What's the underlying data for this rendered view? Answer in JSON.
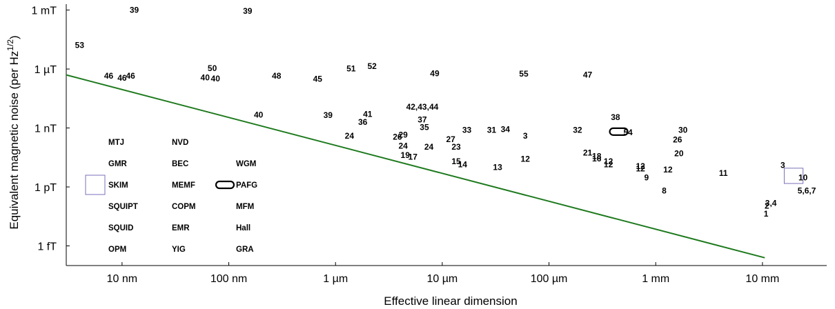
{
  "chart_data": {
    "type": "scatter",
    "xlabel": "Effective linear dimension",
    "ylabel": "Equivalent magnetic noise (per Hz",
    "ylabel_exp": "1/2",
    "ylabel_close": ")",
    "x_scale": "log",
    "y_scale": "log",
    "xlim": [
      3e-09,
      0.04
    ],
    "ylim": [
      1e-16,
      0.002
    ],
    "x_ticks": [
      {
        "value": 1e-08,
        "label": "10 nm"
      },
      {
        "value": 1e-07,
        "label": "100 nm"
      },
      {
        "value": 1e-06,
        "label": "1 µm"
      },
      {
        "value": 1e-05,
        "label": "10 µm"
      },
      {
        "value": 0.0001,
        "label": "100 µm"
      },
      {
        "value": 0.001,
        "label": "1 mm"
      },
      {
        "value": 0.01,
        "label": "10 mm"
      }
    ],
    "y_ticks": [
      {
        "value": 1e-15,
        "label": "1 fT"
      },
      {
        "value": 1e-12,
        "label": "1 pT"
      },
      {
        "value": 1e-09,
        "label": "1 nT"
      },
      {
        "value": 1e-06,
        "label": "1 µT"
      },
      {
        "value": 0.001,
        "label": "1 mT"
      }
    ],
    "trend_line": {
      "color": "#1e7a1e",
      "x": [
        3e-09,
        0.0105
      ],
      "y": [
        5e-07,
        2.5e-16
      ]
    },
    "points": [
      {
        "label": "39",
        "x": 1.3e-08,
        "y": 0.001
      },
      {
        "label": "39",
        "x": 1.5e-07,
        "y": 0.0009
      },
      {
        "label": "53",
        "x": 4e-09,
        "y": 1.6e-05
      },
      {
        "label": "46",
        "x": 7.5e-09,
        "y": 4.5e-07
      },
      {
        "label": "46",
        "x": 1e-08,
        "y": 3.5e-07
      },
      {
        "label": "46",
        "x": 1.2e-08,
        "y": 4.5e-07
      },
      {
        "label": "50",
        "x": 7e-08,
        "y": 1.1e-06
      },
      {
        "label": "40",
        "x": 6e-08,
        "y": 3.6e-07
      },
      {
        "label": "40",
        "x": 7.5e-08,
        "y": 3.3e-07
      },
      {
        "label": "48",
        "x": 2.8e-07,
        "y": 4.5e-07
      },
      {
        "label": "45",
        "x": 6.8e-07,
        "y": 3.1e-07
      },
      {
        "label": "51",
        "x": 1.4e-06,
        "y": 1.05e-06
      },
      {
        "label": "52",
        "x": 2.2e-06,
        "y": 1.4e-06
      },
      {
        "label": "49",
        "x": 8.5e-06,
        "y": 6e-07
      },
      {
        "label": "55",
        "x": 5.8e-05,
        "y": 5.7e-07
      },
      {
        "label": "47",
        "x": 0.00023,
        "y": 5e-07
      },
      {
        "label": "40",
        "x": 1.9e-07,
        "y": 4.7e-09
      },
      {
        "label": "39",
        "x": 8.5e-07,
        "y": 4.5e-09
      },
      {
        "label": "41",
        "x": 2e-06,
        "y": 5e-09
      },
      {
        "label": "42,43,44",
        "x": 6.5e-06,
        "y": 1.2e-08
      },
      {
        "label": "36",
        "x": 1.8e-06,
        "y": 2e-09
      },
      {
        "label": "37",
        "x": 6.5e-06,
        "y": 2.6e-09
      },
      {
        "label": "35",
        "x": 6.8e-06,
        "y": 1.1e-09
      },
      {
        "label": "38",
        "x": 0.00042,
        "y": 3.5e-09
      },
      {
        "label": "33",
        "x": 1.7e-05,
        "y": 8e-10
      },
      {
        "label": "31",
        "x": 2.9e-05,
        "y": 8e-10
      },
      {
        "label": "34",
        "x": 3.9e-05,
        "y": 8.5e-10
      },
      {
        "label": "32",
        "x": 0.000185,
        "y": 8e-10
      },
      {
        "label": "30",
        "x": 0.0018,
        "y": 8e-10
      },
      {
        "label": "54",
        "x": 0.00055,
        "y": 6e-10
      },
      {
        "label": "3",
        "x": 6e-05,
        "y": 4e-10
      },
      {
        "label": "24",
        "x": 1.35e-06,
        "y": 4e-10
      },
      {
        "label": "26",
        "x": 3.8e-06,
        "y": 3.5e-10
      },
      {
        "label": "29",
        "x": 4.3e-06,
        "y": 4.5e-10
      },
      {
        "label": "27",
        "x": 1.2e-05,
        "y": 2.6e-10
      },
      {
        "label": "26",
        "x": 0.0016,
        "y": 2.5e-10
      },
      {
        "label": "24",
        "x": 4.3e-06,
        "y": 1.25e-10
      },
      {
        "label": "24",
        "x": 7.5e-06,
        "y": 1.1e-10
      },
      {
        "label": "23",
        "x": 1.35e-05,
        "y": 1.1e-10
      },
      {
        "label": "19",
        "x": 4.5e-06,
        "y": 4.2e-11
      },
      {
        "label": "17",
        "x": 5.3e-06,
        "y": 3.4e-11
      },
      {
        "label": "20",
        "x": 0.00165,
        "y": 5e-11
      },
      {
        "label": "21",
        "x": 0.00023,
        "y": 5.5e-11
      },
      {
        "label": "18",
        "x": 0.00028,
        "y": 3.7e-11
      },
      {
        "label": "16",
        "x": 0.00028,
        "y": 2.8e-11
      },
      {
        "label": "12",
        "x": 6e-05,
        "y": 2.6e-11
      },
      {
        "label": "12",
        "x": 0.00036,
        "y": 2e-11
      },
      {
        "label": "12",
        "x": 0.00036,
        "y": 1.4e-11
      },
      {
        "label": "15",
        "x": 1.35e-05,
        "y": 2e-11
      },
      {
        "label": "14",
        "x": 1.55e-05,
        "y": 1.4e-11
      },
      {
        "label": "13",
        "x": 3.3e-05,
        "y": 1e-11
      },
      {
        "label": "12",
        "x": 0.00072,
        "y": 1.15e-11
      },
      {
        "label": "12",
        "x": 0.00072,
        "y": 8.5e-12
      },
      {
        "label": "12",
        "x": 0.0013,
        "y": 7.5e-12
      },
      {
        "label": "3",
        "x": 0.0155,
        "y": 1.3e-11
      },
      {
        "label": "11",
        "x": 0.0043,
        "y": 5e-12
      },
      {
        "label": "9",
        "x": 0.00082,
        "y": 3e-12
      },
      {
        "label": "10",
        "x": 0.024,
        "y": 3e-12
      },
      {
        "label": "8",
        "x": 0.0012,
        "y": 6.5e-13
      },
      {
        "label": "5,6,7",
        "x": 0.026,
        "y": 6.5e-13
      },
      {
        "label": "3,4",
        "x": 0.012,
        "y": 1.5e-13
      },
      {
        "label": "2",
        "x": 0.011,
        "y": 1.1e-13
      },
      {
        "label": "1",
        "x": 0.0108,
        "y": 4.3e-14
      }
    ],
    "legend": [
      {
        "label": "MTJ",
        "col": 0,
        "row": 0,
        "marker": "none"
      },
      {
        "label": "GMR",
        "col": 0,
        "row": 1,
        "marker": "none"
      },
      {
        "label": "SKIM",
        "col": 0,
        "row": 2,
        "marker": "box"
      },
      {
        "label": "SQUIPT",
        "col": 0,
        "row": 3,
        "marker": "none"
      },
      {
        "label": "SQUID",
        "col": 0,
        "row": 4,
        "marker": "none"
      },
      {
        "label": "OPM",
        "col": 0,
        "row": 5,
        "marker": "none"
      },
      {
        "label": "NVD",
        "col": 1,
        "row": 0,
        "marker": "none"
      },
      {
        "label": "BEC",
        "col": 1,
        "row": 1,
        "marker": "none"
      },
      {
        "label": "MEMF",
        "col": 1,
        "row": 2,
        "marker": "none"
      },
      {
        "label": "COPM",
        "col": 1,
        "row": 3,
        "marker": "none"
      },
      {
        "label": "EMR",
        "col": 1,
        "row": 4,
        "marker": "none"
      },
      {
        "label": "YIG",
        "col": 1,
        "row": 5,
        "marker": "none"
      },
      {
        "label": "WGM",
        "col": 2,
        "row": 1,
        "marker": "none"
      },
      {
        "label": "PAFG",
        "col": 2,
        "row": 2,
        "marker": "pill"
      },
      {
        "label": "MFM",
        "col": 2,
        "row": 3,
        "marker": "none"
      },
      {
        "label": "Hall",
        "col": 2,
        "row": 4,
        "marker": "none"
      },
      {
        "label": "GRA",
        "col": 2,
        "row": 5,
        "marker": "none"
      }
    ],
    "region_markers": [
      {
        "shape": "box",
        "color": "#7a6fb8",
        "x_range": [
          0.016,
          0.024
        ],
        "y_range": [
          1.5e-12,
          9e-12
        ]
      },
      {
        "shape": "pill",
        "color": "#000000",
        "x": 0.00045,
        "y": 6.5e-10
      }
    ]
  }
}
